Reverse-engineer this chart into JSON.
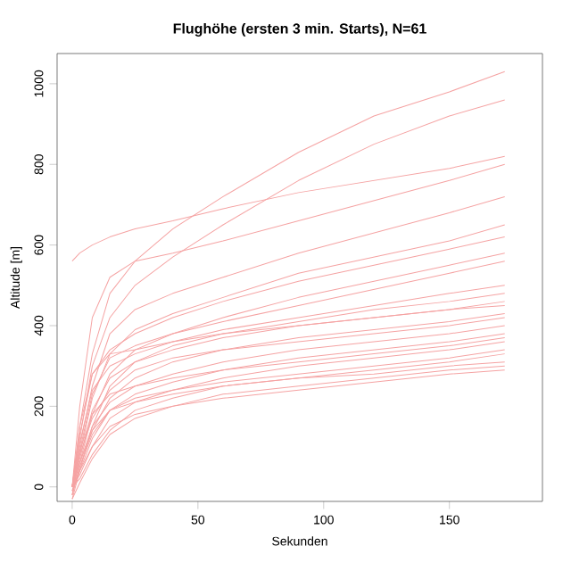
{
  "chart_data": {
    "type": "line",
    "title": "Flughöhe (ersten 3 min. Starts), N=61",
    "xlabel": "Sekunden",
    "ylabel": "Altitude [m]",
    "x": [
      0,
      3,
      8,
      15,
      25,
      40,
      60,
      90,
      120,
      150,
      172
    ],
    "xlim": [
      -6,
      187
    ],
    "ylim": [
      -36,
      1075
    ],
    "xticks": [
      0,
      50,
      100,
      150
    ],
    "yticks": [
      0,
      200,
      400,
      600,
      800,
      1000
    ],
    "grid": false,
    "marker": "none",
    "line_style": "solid",
    "series": [
      {
        "color": "#f5a3a3",
        "values": [
          0,
          150,
          330,
          480,
          560,
          640,
          720,
          830,
          920,
          980,
          1030
        ]
      },
      {
        "color": "#f5a3a3",
        "values": [
          0,
          120,
          300,
          420,
          500,
          570,
          650,
          760,
          850,
          920,
          960
        ]
      },
      {
        "color": "#f5a3a3",
        "values": [
          560,
          580,
          600,
          620,
          640,
          660,
          690,
          730,
          760,
          790,
          820
        ]
      },
      {
        "color": "#f5a3a3",
        "values": [
          0,
          200,
          420,
          520,
          560,
          580,
          610,
          660,
          710,
          760,
          800
        ]
      },
      {
        "color": "#f5a3a3",
        "values": [
          0,
          100,
          250,
          380,
          440,
          480,
          520,
          580,
          630,
          680,
          720
        ]
      },
      {
        "color": "#f5a3a3",
        "values": [
          -20,
          80,
          220,
          330,
          390,
          430,
          470,
          530,
          570,
          610,
          650
        ]
      },
      {
        "color": "#f5a3a3",
        "values": [
          0,
          130,
          280,
          340,
          380,
          420,
          460,
          510,
          550,
          590,
          620
        ]
      },
      {
        "color": "#f5a3a3",
        "values": [
          -10,
          60,
          180,
          280,
          340,
          380,
          420,
          470,
          510,
          550,
          580
        ]
      },
      {
        "color": "#f5a3a3",
        "values": [
          0,
          90,
          230,
          320,
          350,
          380,
          410,
          450,
          490,
          530,
          560
        ]
      },
      {
        "color": "#f5a3a3",
        "values": [
          0,
          110,
          240,
          300,
          330,
          360,
          390,
          420,
          450,
          480,
          500
        ]
      },
      {
        "color": "#f5a3a3",
        "values": [
          -30,
          40,
          150,
          250,
          310,
          350,
          380,
          410,
          440,
          460,
          480
        ]
      },
      {
        "color": "#f5a3a3",
        "values": [
          0,
          70,
          190,
          270,
          310,
          340,
          370,
          400,
          420,
          440,
          460
        ]
      },
      {
        "color": "#f5a3a3",
        "values": [
          0,
          150,
          280,
          330,
          340,
          360,
          380,
          400,
          420,
          440,
          450
        ]
      },
      {
        "color": "#f5a3a3",
        "values": [
          -20,
          50,
          140,
          220,
          270,
          310,
          340,
          370,
          390,
          410,
          430
        ]
      },
      {
        "color": "#f5a3a3",
        "values": [
          0,
          80,
          170,
          240,
          290,
          320,
          340,
          360,
          380,
          400,
          420
        ]
      },
      {
        "color": "#f5a3a3",
        "values": [
          0,
          60,
          150,
          210,
          250,
          280,
          310,
          340,
          360,
          380,
          400
        ]
      },
      {
        "color": "#f5a3a3",
        "values": [
          -10,
          40,
          120,
          190,
          230,
          260,
          290,
          320,
          340,
          360,
          380
        ]
      },
      {
        "color": "#f5a3a3",
        "values": [
          0,
          90,
          180,
          230,
          250,
          270,
          290,
          310,
          330,
          350,
          370
        ]
      },
      {
        "color": "#f5a3a3",
        "values": [
          0,
          30,
          100,
          170,
          210,
          240,
          270,
          300,
          320,
          340,
          360
        ]
      },
      {
        "color": "#f5a3a3",
        "values": [
          -20,
          50,
          130,
          190,
          220,
          240,
          260,
          280,
          300,
          320,
          340
        ]
      },
      {
        "color": "#f5a3a3",
        "values": [
          0,
          20,
          80,
          140,
          190,
          220,
          250,
          270,
          290,
          310,
          330
        ]
      },
      {
        "color": "#f5a3a3",
        "values": [
          0,
          60,
          140,
          190,
          210,
          230,
          250,
          270,
          280,
          300,
          310
        ]
      },
      {
        "color": "#f5a3a3",
        "values": [
          -30,
          10,
          70,
          130,
          170,
          200,
          230,
          250,
          270,
          290,
          300
        ]
      },
      {
        "color": "#f5a3a3",
        "values": [
          0,
          40,
          100,
          150,
          180,
          200,
          220,
          240,
          260,
          280,
          290
        ]
      }
    ]
  }
}
